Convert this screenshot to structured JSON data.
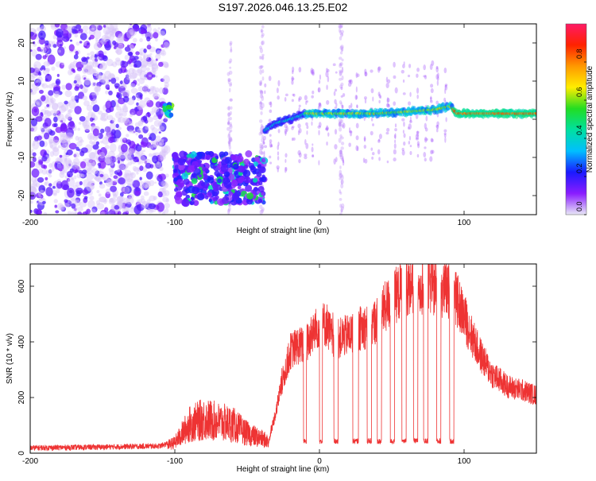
{
  "page": {
    "title": "S197.2026.046.13.25.E02"
  },
  "colors": {
    "series": "#ee3333",
    "colorbar": [
      "#e8e8f6",
      "#8a1cff",
      "#1a1aff",
      "#00bfff",
      "#00e0a0",
      "#22dd22",
      "#ffee00",
      "#ff9900",
      "#ff2200",
      "#ff1a66"
    ]
  },
  "chart_data": [
    {
      "type": "heatmap",
      "title": "S197.2026.046.13.25.E02",
      "xlabel": "Height of straight line (km)",
      "ylabel": "Frequency (Hz)",
      "xlim": [
        -200,
        150
      ],
      "ylim": [
        -25,
        25
      ],
      "x_ticks": [
        "-200",
        "-100",
        "0",
        "100"
      ],
      "y_ticks": [
        "-20",
        "-10",
        "0",
        "10",
        "20"
      ],
      "colorbar": {
        "label": "Normalized spectral amplitude",
        "range": [
          0,
          1
        ],
        "ticks": [
          "0.0",
          "0.2",
          "0.4",
          "0.6",
          "0.8"
        ]
      },
      "features": [
        {
          "name": "scattered noise",
          "x_range": [
            -200,
            -105
          ],
          "freq_range": [
            -25,
            25
          ],
          "amplitude": 0.12
        },
        {
          "name": "patch",
          "x_range": [
            -107,
            -102
          ],
          "freq_range": [
            1,
            4
          ],
          "amplitude": 0.4
        },
        {
          "name": "low band",
          "x_range": [
            -100,
            -38
          ],
          "freq_range": [
            -22,
            -9
          ],
          "amplitude": 0.2
        },
        {
          "name": "carrier",
          "x_range": [
            -38,
            150
          ],
          "amplitude": 0.75,
          "freq_track": [
            [
              -38,
              -3
            ],
            [
              -30,
              -1
            ],
            [
              -20,
              0
            ],
            [
              -10,
              1.5
            ],
            [
              0,
              1.5
            ],
            [
              20,
              1.5
            ],
            [
              40,
              1.5
            ],
            [
              60,
              2
            ],
            [
              80,
              2.5
            ],
            [
              90,
              3.5
            ],
            [
              95,
              1.5
            ],
            [
              150,
              1.5
            ]
          ]
        }
      ]
    },
    {
      "type": "line",
      "xlabel": "Height of straight line (km)",
      "ylabel": "SNR (10 * v/v)",
      "xlim": [
        -200,
        150
      ],
      "ylim": [
        0,
        680
      ],
      "x_ticks": [
        "-200",
        "-100",
        "0",
        "100"
      ],
      "y_ticks": [
        "0",
        "200",
        "400",
        "600"
      ],
      "envelope": {
        "x": [
          -200,
          -150,
          -110,
          -100,
          -90,
          -80,
          -70,
          -60,
          -50,
          -40,
          -35,
          -30,
          -25,
          -20,
          -15,
          -10,
          -5,
          0,
          5,
          10,
          15,
          20,
          25,
          30,
          35,
          40,
          45,
          50,
          55,
          60,
          65,
          70,
          75,
          80,
          85,
          90,
          95,
          100,
          105,
          110,
          115,
          120,
          125,
          130,
          135,
          140,
          145,
          150
        ],
        "y": [
          15,
          18,
          22,
          40,
          110,
          130,
          120,
          110,
          75,
          55,
          45,
          160,
          280,
          380,
          400,
          400,
          440,
          480,
          480,
          410,
          430,
          440,
          450,
          470,
          470,
          500,
          540,
          570,
          600,
          620,
          630,
          630,
          630,
          620,
          610,
          600,
          570,
          510,
          440,
          380,
          330,
          290,
          270,
          250,
          240,
          235,
          225,
          215
        ]
      },
      "dropouts": [
        [
          -11,
          -9
        ],
        [
          0,
          2
        ],
        [
          10,
          13
        ],
        [
          23,
          27
        ],
        [
          33,
          36
        ],
        [
          40,
          43
        ],
        [
          49,
          52
        ],
        [
          57,
          60
        ],
        [
          65,
          68
        ],
        [
          72,
          75
        ],
        [
          81,
          84
        ],
        [
          90,
          93
        ]
      ],
      "dropout_level": 45
    }
  ]
}
